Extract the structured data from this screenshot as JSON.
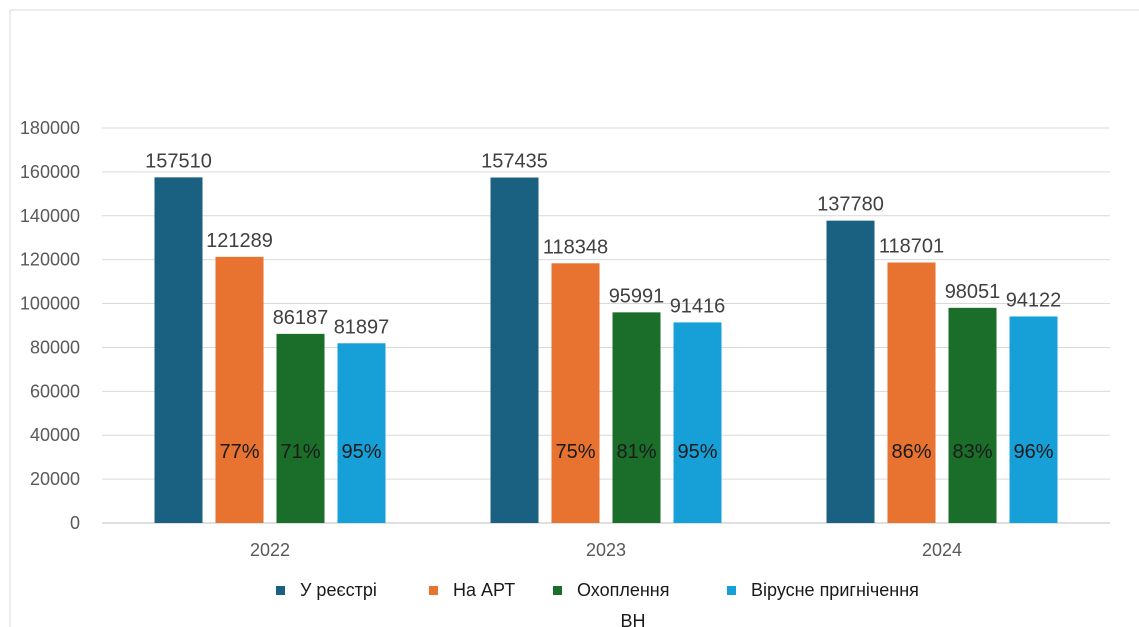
{
  "chart_data": {
    "type": "bar",
    "categories": [
      "2022",
      "2023",
      "2024"
    ],
    "series": [
      {
        "name": "У реєстрі",
        "color": "#1a6080",
        "values": [
          157510,
          157435,
          137780
        ],
        "pct_labels": [
          "",
          "",
          ""
        ]
      },
      {
        "name": "На АРТ",
        "color": "#e8722f",
        "values": [
          121289,
          118348,
          118701
        ],
        "pct_labels": [
          "77%",
          "75%",
          "86%"
        ]
      },
      {
        "name": "Охоплення ВН",
        "color": "#1a6e2a",
        "values": [
          86187,
          95991,
          98051
        ],
        "pct_labels": [
          "71%",
          "81%",
          "83%"
        ]
      },
      {
        "name": "Вірусне пригнічення",
        "color": "#17a0d8",
        "values": [
          81897,
          91416,
          94122
        ],
        "pct_labels": [
          "95%",
          "95%",
          "96%"
        ]
      }
    ],
    "ylim": [
      0,
      180000
    ],
    "yticks": [
      0,
      20000,
      40000,
      60000,
      80000,
      100000,
      120000,
      140000,
      160000,
      180000
    ],
    "grid": true,
    "legend_position": "bottom",
    "title": "",
    "xlabel": "",
    "ylabel": ""
  }
}
